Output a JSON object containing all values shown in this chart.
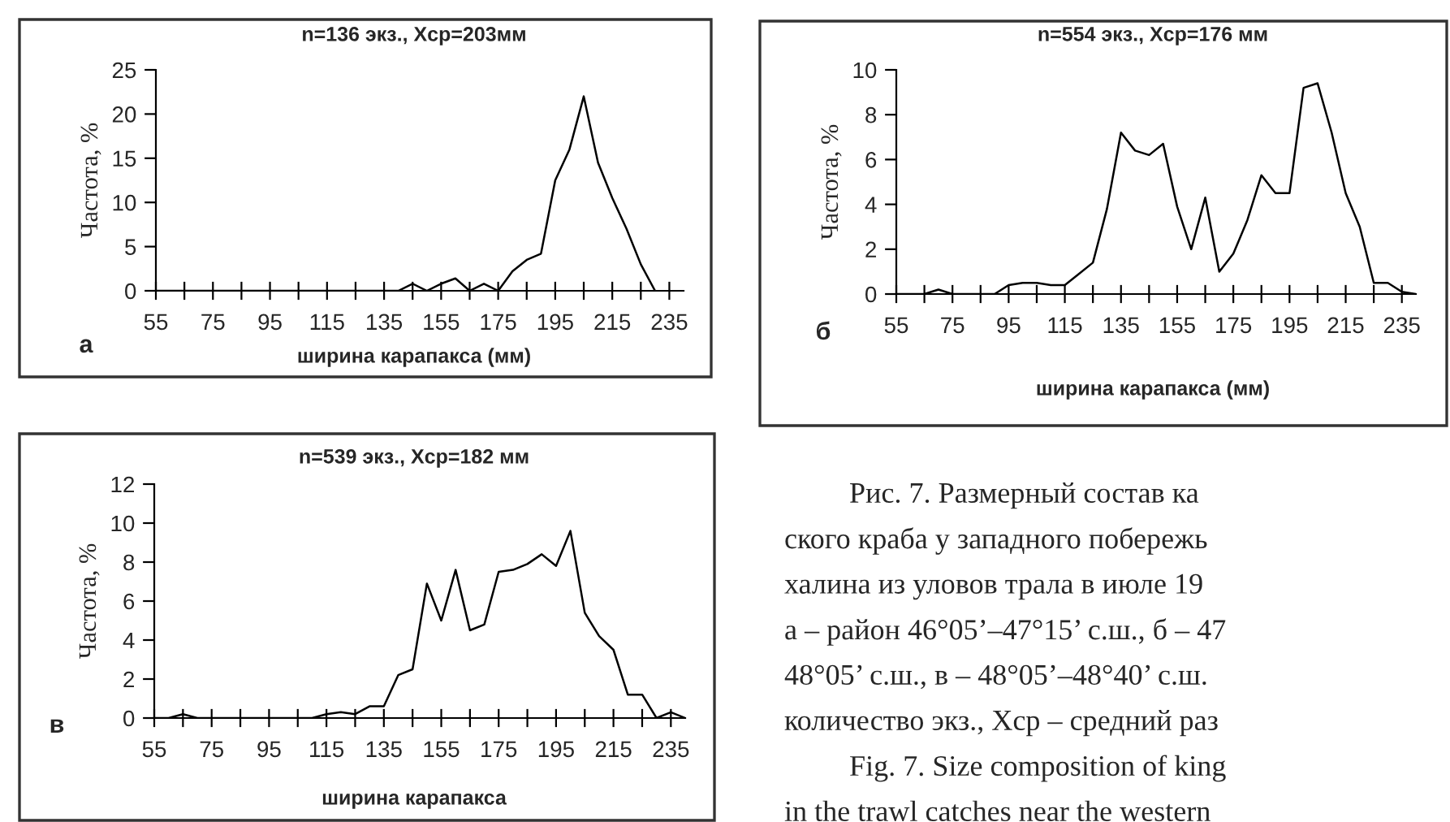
{
  "chart_data": [
    {
      "type": "line",
      "title": "n=136 экз., Xср=203мм",
      "xlabel": "ширина карапакса (мм)",
      "ylabel": "Частота, %",
      "annotations": [
        "а"
      ],
      "x": [
        55,
        60,
        65,
        70,
        75,
        80,
        85,
        90,
        95,
        100,
        105,
        110,
        115,
        120,
        125,
        130,
        135,
        140,
        145,
        150,
        155,
        160,
        165,
        170,
        175,
        180,
        185,
        190,
        195,
        200,
        205,
        210,
        215,
        220,
        225,
        230
      ],
      "series": [
        {
          "color": "#000000",
          "values": [
            0,
            0,
            0,
            0,
            0,
            0,
            0,
            0,
            0,
            0,
            0,
            0,
            0,
            0,
            0,
            0,
            0,
            0,
            0.8,
            0,
            0.8,
            1.4,
            0,
            0.8,
            0,
            2.2,
            3.5,
            4.2,
            12.5,
            16,
            22,
            14.5,
            10.5,
            7,
            3,
            0
          ]
        }
      ],
      "xlim": [
        55,
        240
      ],
      "xticks": [
        {
          "value": 55,
          "label": "55"
        },
        {
          "value": 65,
          "label": null
        },
        {
          "value": 75,
          "label": "75"
        },
        {
          "value": 85,
          "label": null
        },
        {
          "value": 95,
          "label": "95"
        },
        {
          "value": 105,
          "label": null
        },
        {
          "value": 115,
          "label": "115"
        },
        {
          "value": 125,
          "label": null
        },
        {
          "value": 135,
          "label": "135"
        },
        {
          "value": 145,
          "label": null
        },
        {
          "value": 155,
          "label": "155"
        },
        {
          "value": 165,
          "label": null
        },
        {
          "value": 175,
          "label": "175"
        },
        {
          "value": 185,
          "label": null
        },
        {
          "value": 195,
          "label": "195"
        },
        {
          "value": 205,
          "label": null
        },
        {
          "value": 215,
          "label": "215"
        },
        {
          "value": 225,
          "label": null
        },
        {
          "value": 235,
          "label": "235"
        }
      ],
      "ylim": [
        0,
        25
      ],
      "yticks": [
        0,
        5,
        10,
        15,
        20,
        25
      ]
    },
    {
      "type": "line",
      "title": "n=554 экз., Xср=176 мм",
      "xlabel": "ширина карапакса (мм)",
      "ylabel": "Частота, %",
      "annotations": [
        "б"
      ],
      "x": [
        55,
        60,
        65,
        70,
        75,
        80,
        85,
        90,
        95,
        100,
        105,
        110,
        115,
        120,
        125,
        130,
        135,
        140,
        145,
        150,
        155,
        160,
        165,
        170,
        175,
        180,
        185,
        190,
        195,
        200,
        205,
        210,
        215,
        220,
        225,
        230,
        235,
        240
      ],
      "series": [
        {
          "color": "#000000",
          "values": [
            0,
            0,
            0,
            0.2,
            0,
            0,
            0,
            0,
            0.4,
            0.5,
            0.5,
            0.4,
            0.4,
            0.9,
            1.4,
            3.8,
            7.2,
            6.4,
            6.2,
            6.7,
            3.9,
            2.0,
            4.3,
            1.0,
            1.8,
            3.3,
            5.3,
            4.5,
            4.5,
            9.2,
            9.4,
            7.2,
            4.5,
            3.0,
            0.5,
            0.5,
            0.1,
            0
          ]
        }
      ],
      "xlim": [
        55,
        240
      ],
      "xticks": [
        {
          "value": 55,
          "label": "55"
        },
        {
          "value": 65,
          "label": null
        },
        {
          "value": 75,
          "label": "75"
        },
        {
          "value": 85,
          "label": null
        },
        {
          "value": 95,
          "label": "95"
        },
        {
          "value": 105,
          "label": null
        },
        {
          "value": 115,
          "label": "115"
        },
        {
          "value": 125,
          "label": null
        },
        {
          "value": 135,
          "label": "135"
        },
        {
          "value": 145,
          "label": null
        },
        {
          "value": 155,
          "label": "155"
        },
        {
          "value": 165,
          "label": null
        },
        {
          "value": 175,
          "label": "175"
        },
        {
          "value": 185,
          "label": null
        },
        {
          "value": 195,
          "label": "195"
        },
        {
          "value": 205,
          "label": null
        },
        {
          "value": 215,
          "label": "215"
        },
        {
          "value": 225,
          "label": null
        },
        {
          "value": 235,
          "label": "235"
        }
      ],
      "ylim": [
        0,
        10
      ],
      "yticks": [
        0,
        2,
        4,
        6,
        8,
        10
      ]
    },
    {
      "type": "line",
      "title": "n=539 экз., Xср=182 мм",
      "xlabel": "ширина карапакса",
      "ylabel": "Частота, %",
      "annotations": [
        "в"
      ],
      "x": [
        55,
        60,
        65,
        70,
        75,
        80,
        85,
        90,
        95,
        100,
        105,
        110,
        115,
        120,
        125,
        130,
        135,
        140,
        145,
        150,
        155,
        160,
        165,
        170,
        175,
        180,
        185,
        190,
        195,
        200,
        205,
        210,
        215,
        220,
        225,
        230,
        235,
        240
      ],
      "series": [
        {
          "color": "#000000",
          "values": [
            0,
            0,
            0.2,
            0,
            0,
            0,
            0,
            0,
            0,
            0,
            0,
            0,
            0.2,
            0.3,
            0.2,
            0.6,
            0.6,
            2.2,
            2.5,
            6.9,
            5.0,
            7.6,
            4.5,
            4.8,
            7.5,
            7.6,
            7.9,
            8.4,
            7.8,
            9.6,
            5.4,
            4.2,
            3.5,
            1.2,
            1.2,
            0,
            0.3,
            0
          ]
        }
      ],
      "xlim": [
        55,
        240
      ],
      "xticks": [
        {
          "value": 55,
          "label": "55"
        },
        {
          "value": 65,
          "label": null
        },
        {
          "value": 75,
          "label": "75"
        },
        {
          "value": 85,
          "label": null
        },
        {
          "value": 95,
          "label": "95"
        },
        {
          "value": 105,
          "label": null
        },
        {
          "value": 115,
          "label": "115"
        },
        {
          "value": 125,
          "label": null
        },
        {
          "value": 135,
          "label": "135"
        },
        {
          "value": 145,
          "label": null
        },
        {
          "value": 155,
          "label": "155"
        },
        {
          "value": 165,
          "label": null
        },
        {
          "value": 175,
          "label": "175"
        },
        {
          "value": 185,
          "label": null
        },
        {
          "value": 195,
          "label": "195"
        },
        {
          "value": 205,
          "label": null
        },
        {
          "value": 215,
          "label": "215"
        },
        {
          "value": 225,
          "label": null
        },
        {
          "value": 235,
          "label": "235"
        }
      ],
      "ylim": [
        0,
        12
      ],
      "yticks": [
        0,
        2,
        4,
        6,
        8,
        10,
        12
      ]
    },
    {
      "type": "other",
      "annotations": [
        "Рис. 7. Размерный состав ка",
        "ского краба у западного побережь",
        "халина из уловов трала в июле 19",
        "а – район 46°05’–47°15’ с.ш., б – 47",
        "48°05’ с.ш., в – 48°05’–48°40’ с.ш.",
        "количество экз., Xcp – средний раз",
        "Fig. 7. Size composition of king",
        "in the trawl catches near the western"
      ]
    }
  ]
}
